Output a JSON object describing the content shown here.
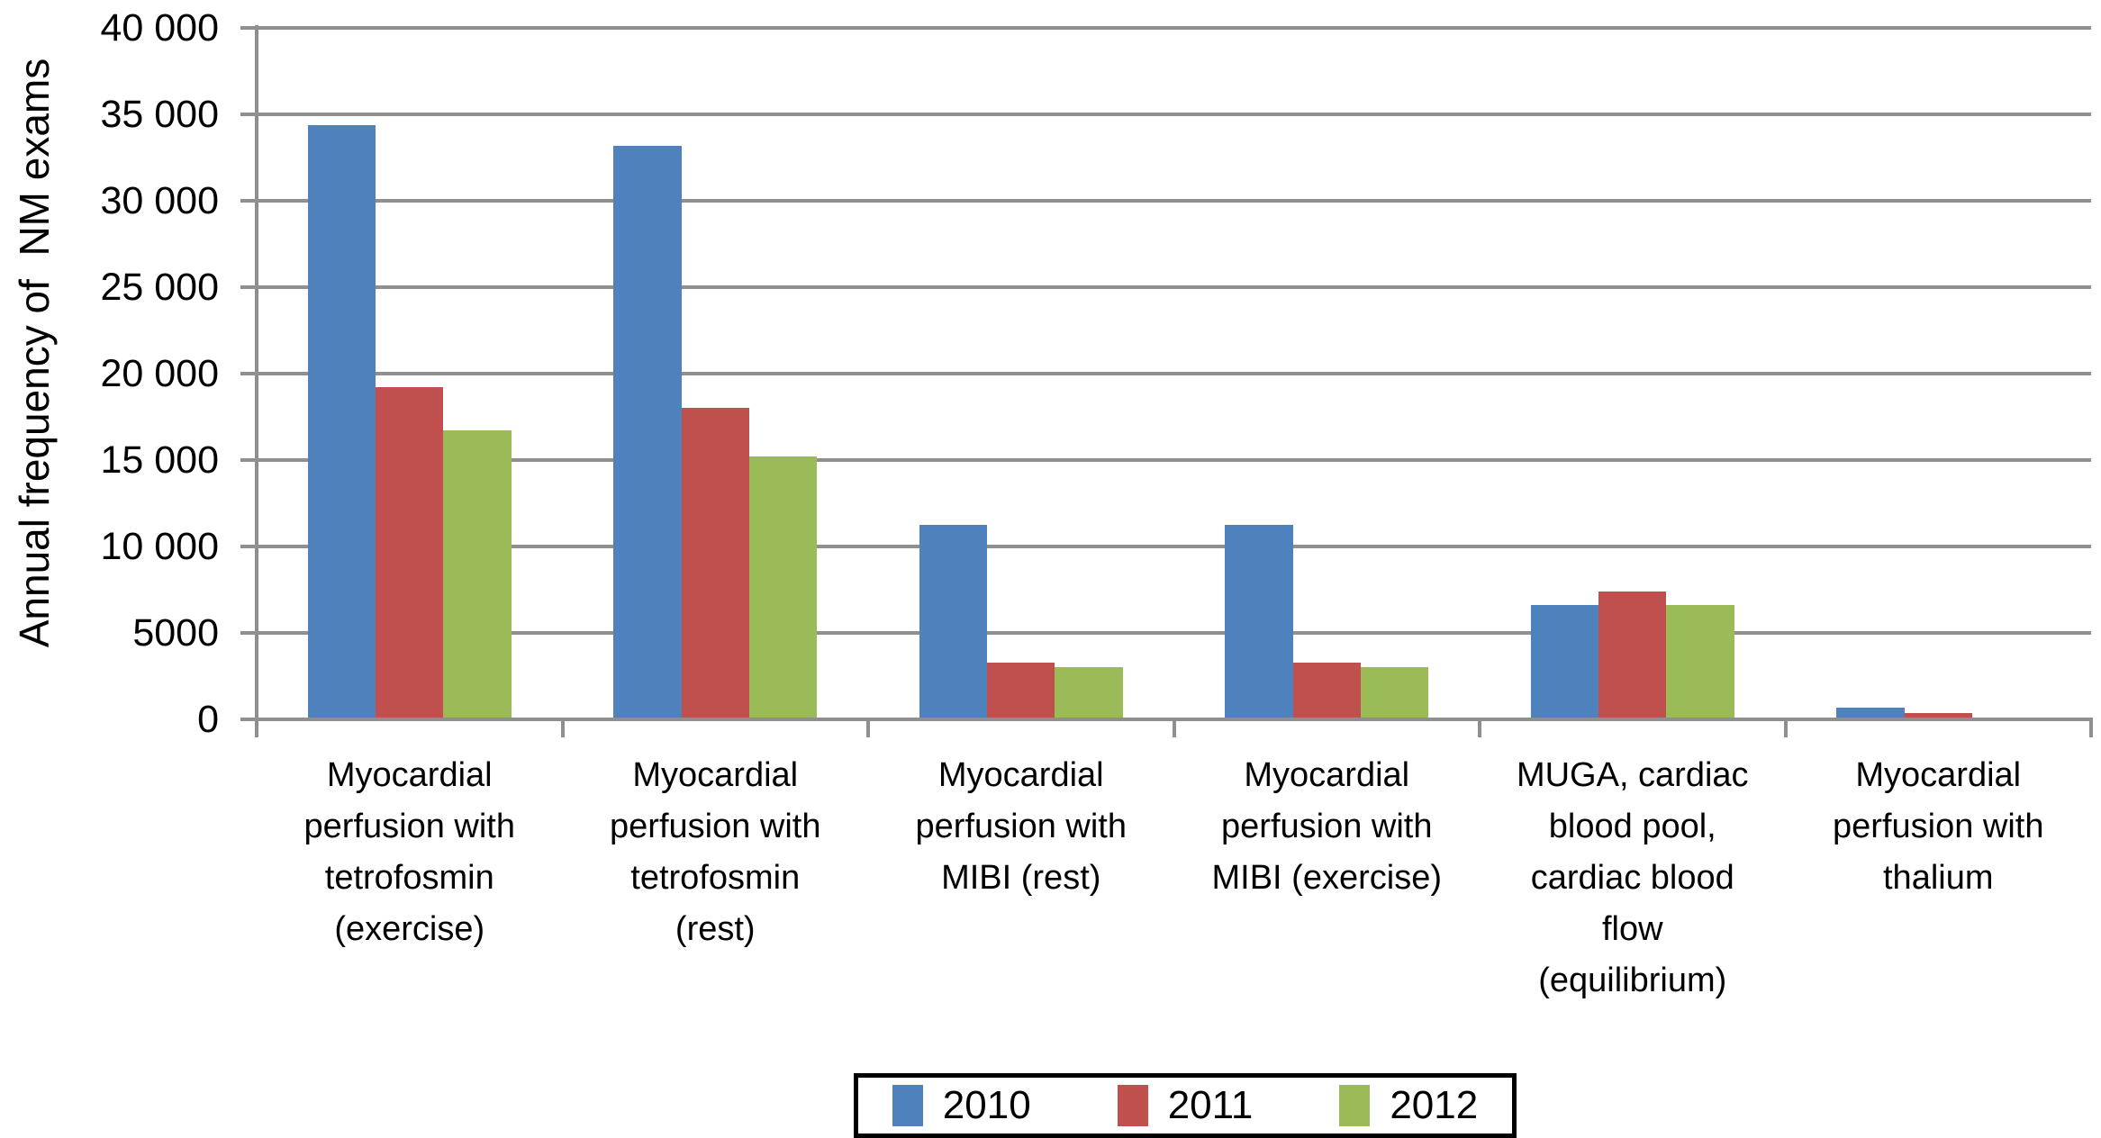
{
  "chart_data": {
    "type": "bar",
    "title": "",
    "xlabel": "",
    "ylabel": "Annual frequency of  NM exams",
    "categories": [
      "Myocardial\nperfusion with\ntetrofosmin\n(exercise)",
      "Myocardial\nperfusion with\ntetrofosmin\n(rest)",
      "Myocardial\nperfusion with\nMIBI (rest)",
      "Myocardial\nperfusion with\nMIBI (exercise)",
      "MUGA, cardiac\nblood pool,\ncardiac blood\nflow\n(equilibrium)",
      "Myocardial\nperfusion with\nthalium"
    ],
    "series": [
      {
        "name": "2010",
        "color": "#4f81bd",
        "values": [
          34400,
          33200,
          11250,
          11250,
          6600,
          700
        ]
      },
      {
        "name": "2011",
        "color": "#c0504d",
        "values": [
          19200,
          18000,
          3300,
          3300,
          7400,
          350
        ]
      },
      {
        "name": "2012",
        "color": "#9bbb59",
        "values": [
          16700,
          15200,
          3000,
          3000,
          6600,
          0
        ]
      }
    ],
    "ylim": [
      0,
      40000
    ],
    "ytick_step": 5000,
    "ytick_labels": [
      "0",
      "5000",
      "10 000",
      "15 000",
      "20 000",
      "25 000",
      "30 000",
      "35 000",
      "40 000"
    ],
    "grid": "horizontal",
    "grid_color": "#8f8f8f",
    "bar_gap_percent": 150,
    "legend_position": "bottom-center"
  }
}
